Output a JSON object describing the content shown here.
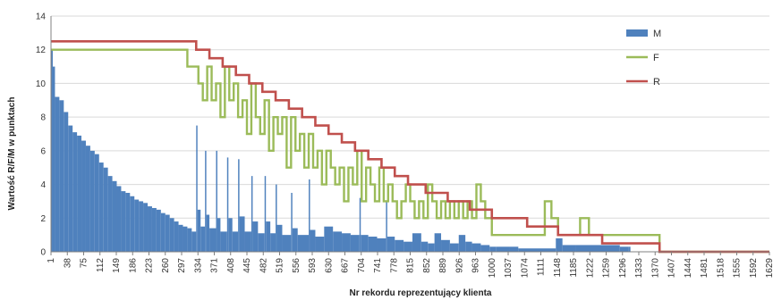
{
  "chart_data": {
    "type": "bar",
    "title": "",
    "xlabel": "Nr rekordu reprezentujący klienta",
    "ylabel": "Wartość R/F/M w punktach",
    "ylim": [
      0,
      14
    ],
    "yticks": [
      0,
      2,
      4,
      6,
      8,
      10,
      12,
      14
    ],
    "xlim": [
      1,
      1629
    ],
    "xticks": [
      "1",
      "38",
      "75",
      "112",
      "149",
      "186",
      "223",
      "260",
      "297",
      "334",
      "371",
      "408",
      "445",
      "482",
      "519",
      "556",
      "593",
      "630",
      "667",
      "704",
      "741",
      "778",
      "815",
      "852",
      "889",
      "926",
      "963",
      "1000",
      "1037",
      "1074",
      "1111",
      "1148",
      "1185",
      "1222",
      "1259",
      "1296",
      "1333",
      "1370",
      "1407",
      "1444",
      "1481",
      "1518",
      "1555",
      "1592",
      "1629"
    ],
    "grid": true,
    "legend": "right",
    "series": [
      {
        "name": "M",
        "kind": "bar",
        "color": "#4f81bd",
        "points": [
          [
            1,
            12
          ],
          [
            5,
            11
          ],
          [
            10,
            9.2
          ],
          [
            20,
            9
          ],
          [
            30,
            8.3
          ],
          [
            40,
            7.5
          ],
          [
            50,
            7.1
          ],
          [
            60,
            6.9
          ],
          [
            70,
            6.6
          ],
          [
            80,
            6.3
          ],
          [
            90,
            6
          ],
          [
            100,
            5.8
          ],
          [
            110,
            5.3
          ],
          [
            120,
            5
          ],
          [
            130,
            4.5
          ],
          [
            140,
            4.2
          ],
          [
            150,
            3.9
          ],
          [
            160,
            3.6
          ],
          [
            170,
            3.5
          ],
          [
            180,
            3.3
          ],
          [
            190,
            3.1
          ],
          [
            200,
            3
          ],
          [
            210,
            2.9
          ],
          [
            220,
            2.7
          ],
          [
            230,
            2.6
          ],
          [
            240,
            2.5
          ],
          [
            250,
            2.3
          ],
          [
            260,
            2.2
          ],
          [
            270,
            2
          ],
          [
            280,
            1.8
          ],
          [
            290,
            1.6
          ],
          [
            300,
            1.5
          ],
          [
            310,
            1.4
          ],
          [
            320,
            1.2
          ],
          [
            330,
            7.5
          ],
          [
            333,
            2.5
          ],
          [
            340,
            1.5
          ],
          [
            350,
            6
          ],
          [
            353,
            2.2
          ],
          [
            360,
            1.4
          ],
          [
            375,
            6
          ],
          [
            378,
            2
          ],
          [
            385,
            1.2
          ],
          [
            400,
            5.6
          ],
          [
            403,
            2
          ],
          [
            412,
            1.2
          ],
          [
            425,
            5.5
          ],
          [
            428,
            2.1
          ],
          [
            440,
            1.2
          ],
          [
            455,
            4.5
          ],
          [
            458,
            1.8
          ],
          [
            470,
            1.1
          ],
          [
            485,
            4.5
          ],
          [
            488,
            1.8
          ],
          [
            498,
            1.1
          ],
          [
            510,
            4
          ],
          [
            513,
            1.6
          ],
          [
            525,
            1
          ],
          [
            545,
            3.5
          ],
          [
            548,
            1.4
          ],
          [
            560,
            1
          ],
          [
            585,
            4.3
          ],
          [
            588,
            1.3
          ],
          [
            600,
            0.9
          ],
          [
            620,
            1.5
          ],
          [
            640,
            1.2
          ],
          [
            660,
            1.1
          ],
          [
            680,
            1
          ],
          [
            700,
            3.2
          ],
          [
            703,
            1
          ],
          [
            720,
            0.9
          ],
          [
            740,
            0.8
          ],
          [
            760,
            3
          ],
          [
            763,
            0.9
          ],
          [
            780,
            0.7
          ],
          [
            800,
            0.6
          ],
          [
            820,
            1.1
          ],
          [
            840,
            0.6
          ],
          [
            855,
            0.5
          ],
          [
            870,
            1.1
          ],
          [
            885,
            0.7
          ],
          [
            905,
            0.5
          ],
          [
            925,
            1
          ],
          [
            940,
            0.6
          ],
          [
            955,
            0.5
          ],
          [
            975,
            0.4
          ],
          [
            995,
            0.3
          ],
          [
            1010,
            0.3
          ],
          [
            1040,
            0.3
          ],
          [
            1060,
            0.2
          ],
          [
            1145,
            0.8
          ],
          [
            1160,
            0.4
          ],
          [
            1190,
            0.4
          ],
          [
            1290,
            0.3
          ],
          [
            1310,
            0.3
          ]
        ]
      },
      {
        "name": "F",
        "kind": "step-line",
        "color": "#9bbb59",
        "points": [
          [
            1,
            12
          ],
          [
            300,
            12
          ],
          [
            310,
            11
          ],
          [
            330,
            11
          ],
          [
            335,
            10
          ],
          [
            345,
            9
          ],
          [
            355,
            11
          ],
          [
            365,
            9
          ],
          [
            375,
            10
          ],
          [
            385,
            8
          ],
          [
            395,
            11
          ],
          [
            405,
            9
          ],
          [
            415,
            10
          ],
          [
            425,
            8
          ],
          [
            435,
            9
          ],
          [
            445,
            7
          ],
          [
            455,
            10
          ],
          [
            465,
            8
          ],
          [
            475,
            7
          ],
          [
            485,
            9
          ],
          [
            495,
            6
          ],
          [
            505,
            8
          ],
          [
            515,
            7
          ],
          [
            525,
            8
          ],
          [
            535,
            5
          ],
          [
            545,
            8
          ],
          [
            555,
            6
          ],
          [
            565,
            7
          ],
          [
            575,
            5
          ],
          [
            585,
            7
          ],
          [
            595,
            5
          ],
          [
            605,
            6
          ],
          [
            615,
            4
          ],
          [
            625,
            6
          ],
          [
            635,
            5
          ],
          [
            645,
            4
          ],
          [
            655,
            5
          ],
          [
            665,
            3
          ],
          [
            675,
            5
          ],
          [
            685,
            4
          ],
          [
            695,
            6
          ],
          [
            705,
            3
          ],
          [
            715,
            5
          ],
          [
            725,
            4
          ],
          [
            735,
            3
          ],
          [
            745,
            5
          ],
          [
            755,
            3
          ],
          [
            765,
            4
          ],
          [
            775,
            3
          ],
          [
            785,
            2
          ],
          [
            795,
            3
          ],
          [
            805,
            4
          ],
          [
            815,
            3
          ],
          [
            825,
            2
          ],
          [
            835,
            3
          ],
          [
            845,
            2
          ],
          [
            855,
            4
          ],
          [
            865,
            3
          ],
          [
            875,
            2
          ],
          [
            885,
            3
          ],
          [
            895,
            2
          ],
          [
            905,
            3
          ],
          [
            915,
            2
          ],
          [
            925,
            3
          ],
          [
            935,
            2
          ],
          [
            945,
            3
          ],
          [
            955,
            2
          ],
          [
            965,
            4
          ],
          [
            975,
            3
          ],
          [
            985,
            2
          ],
          [
            1000,
            1
          ],
          [
            1100,
            1
          ],
          [
            1120,
            3
          ],
          [
            1135,
            2
          ],
          [
            1150,
            1
          ],
          [
            1200,
            2
          ],
          [
            1220,
            1
          ],
          [
            1290,
            1
          ],
          [
            1380,
            0
          ],
          [
            1629,
            0
          ]
        ]
      },
      {
        "name": "R",
        "kind": "step-line",
        "color": "#c0504d",
        "points": [
          [
            1,
            12.5
          ],
          [
            310,
            12.5
          ],
          [
            330,
            12
          ],
          [
            360,
            11.5
          ],
          [
            390,
            11
          ],
          [
            420,
            10.5
          ],
          [
            450,
            10
          ],
          [
            480,
            9.5
          ],
          [
            510,
            9
          ],
          [
            540,
            8.5
          ],
          [
            570,
            8
          ],
          [
            600,
            7.5
          ],
          [
            630,
            7
          ],
          [
            660,
            6.5
          ],
          [
            690,
            6
          ],
          [
            720,
            5.5
          ],
          [
            750,
            5
          ],
          [
            780,
            4.5
          ],
          [
            810,
            4
          ],
          [
            850,
            3.5
          ],
          [
            900,
            3
          ],
          [
            950,
            2.5
          ],
          [
            1000,
            2
          ],
          [
            1080,
            1.5
          ],
          [
            1150,
            1
          ],
          [
            1250,
            0.5
          ],
          [
            1340,
            0.5
          ],
          [
            1380,
            0
          ],
          [
            1629,
            0
          ]
        ]
      }
    ]
  }
}
